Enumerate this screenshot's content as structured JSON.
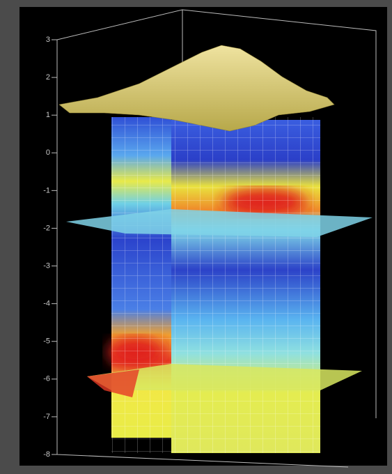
{
  "chart_data": {
    "type": "volume",
    "ylim": [
      -8,
      3
    ],
    "yticks": [
      3,
      2,
      1,
      0,
      -1,
      -2,
      -3,
      -4,
      -5,
      -6,
      -7,
      -8
    ]
  }
}
